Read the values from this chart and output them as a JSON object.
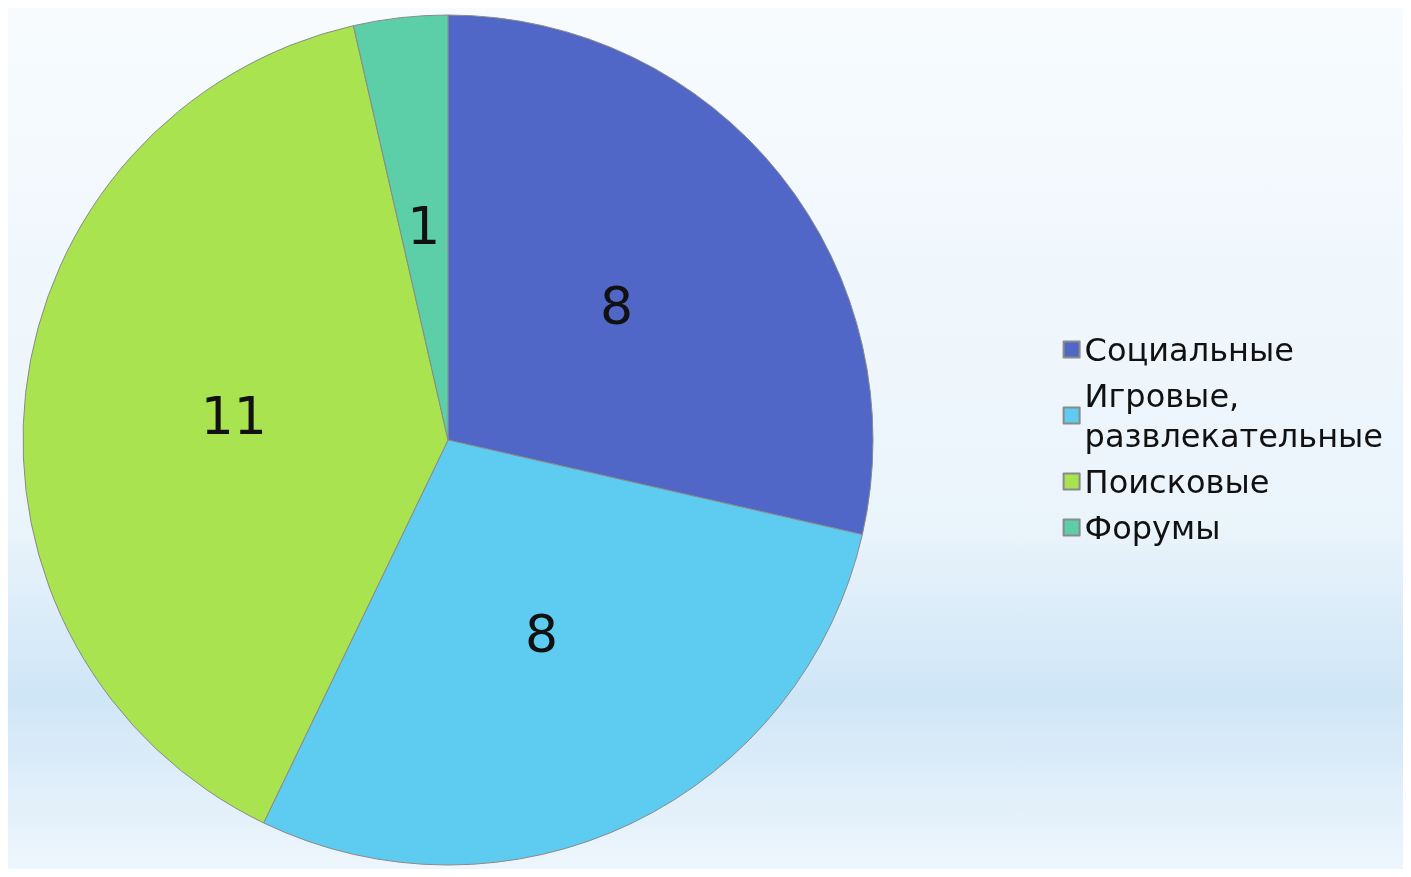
{
  "chart_data": {
    "type": "pie",
    "categories": [
      "Социальные",
      "Игровые, развлекательные",
      "Поисковые",
      "Форумы"
    ],
    "values": [
      8,
      8,
      11,
      1
    ],
    "colors": [
      "#5067c8",
      "#5ecbf0",
      "#a9e34f",
      "#5ccea8"
    ],
    "data_labels": true,
    "legend": "right"
  }
}
